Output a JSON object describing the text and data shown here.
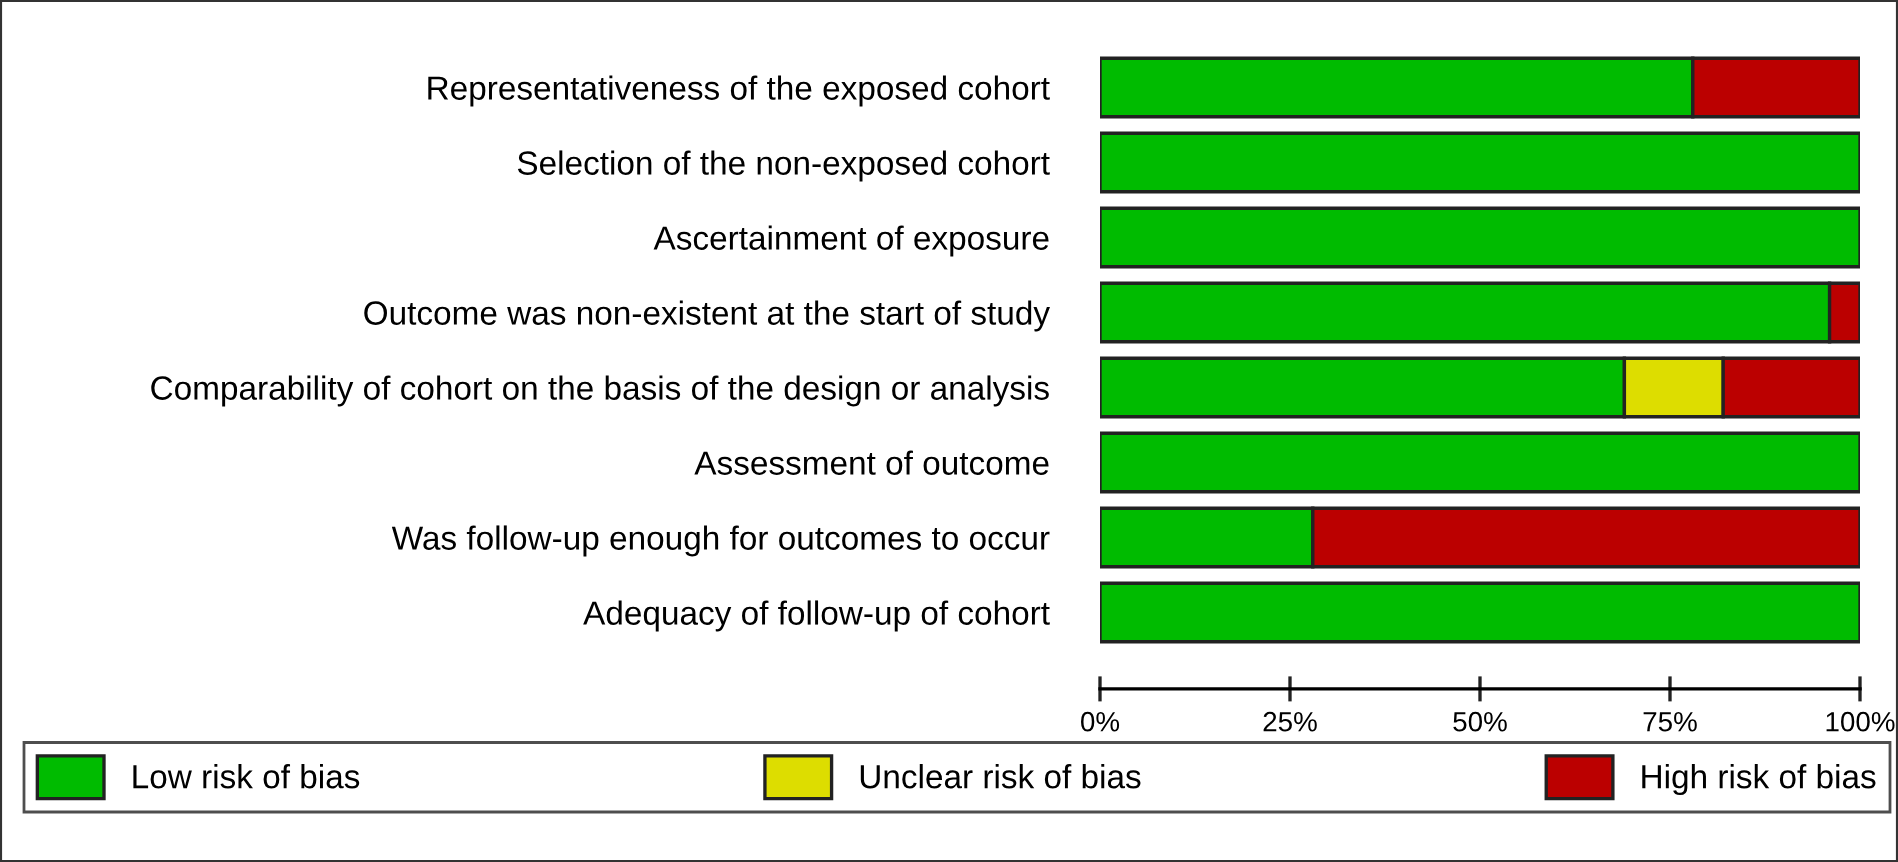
{
  "chart_data": {
    "type": "bar",
    "orientation": "horizontal",
    "stacked": true,
    "categories": [
      "Representativeness of the exposed cohort",
      "Selection of the non-exposed cohort",
      "Ascertainment of exposure",
      "Outcome was non-existent at the start of study",
      "Comparability of cohort on the basis of the design or analysis",
      "Assessment of outcome",
      "Was follow-up enough for outcomes to occur",
      "Adequacy of follow-up of cohort"
    ],
    "series": [
      {
        "name": "Low risk of bias",
        "color": "#00bb00",
        "values": [
          78,
          100,
          100,
          96,
          69,
          100,
          28,
          100
        ]
      },
      {
        "name": "Unclear risk of bias",
        "color": "#dddd00",
        "values": [
          null,
          null,
          null,
          null,
          13,
          null,
          null,
          null
        ]
      },
      {
        "name": "High risk of bias",
        "color": "#bb0000",
        "values": [
          22,
          null,
          null,
          4,
          18,
          null,
          72,
          null
        ]
      }
    ],
    "xlim": [
      0,
      100
    ],
    "xticks": [
      {
        "value": 0,
        "label": "0%"
      },
      {
        "value": 25,
        "label": "25%"
      },
      {
        "value": 50,
        "label": "50%"
      },
      {
        "value": 75,
        "label": "75%"
      },
      {
        "value": 100,
        "label": "100%"
      }
    ],
    "grid": false,
    "legend": "bottom"
  }
}
